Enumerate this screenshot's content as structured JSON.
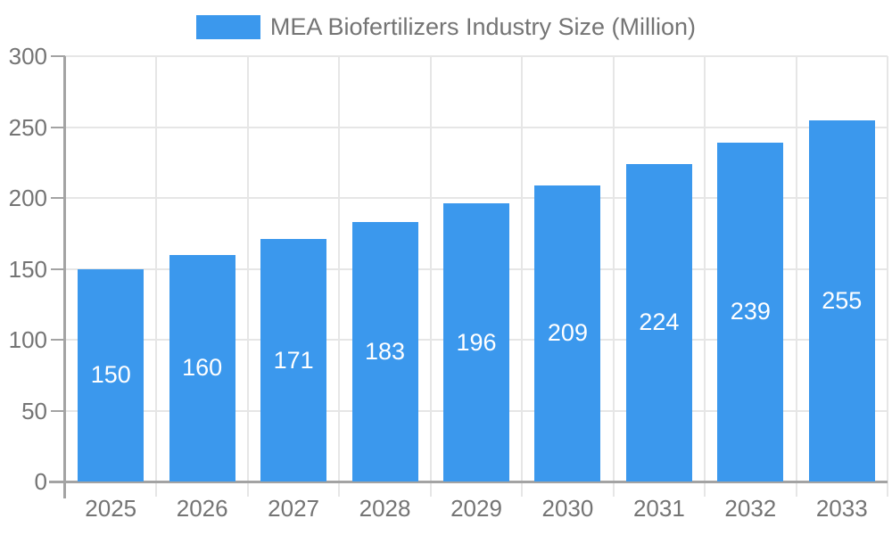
{
  "chart_data": {
    "type": "bar",
    "title": "MEA Biofertilizers Industry Size (Million)",
    "legend": {
      "position": "top",
      "entries": [
        "MEA Biofertilizers Industry Size (Million)"
      ]
    },
    "categories": [
      "2025",
      "2026",
      "2027",
      "2028",
      "2029",
      "2030",
      "2031",
      "2032",
      "2033"
    ],
    "values": [
      150,
      160,
      171,
      183,
      196,
      209,
      224,
      239,
      255
    ],
    "bar_value_labels": [
      "150",
      "160",
      "171",
      "183",
      "196",
      "209",
      "224",
      "239",
      "255"
    ],
    "xlabel": "",
    "ylabel": "",
    "ylim": [
      0,
      300
    ],
    "yticks": [
      0,
      50,
      100,
      150,
      200,
      250,
      300
    ],
    "grid": true,
    "colors": {
      "bar": "#3b98ed",
      "grid": "#e6e6e6",
      "axis": "#a3a3a3",
      "tick_text": "#747474",
      "value_text": "#ffffff",
      "background": "#ffffff"
    }
  }
}
